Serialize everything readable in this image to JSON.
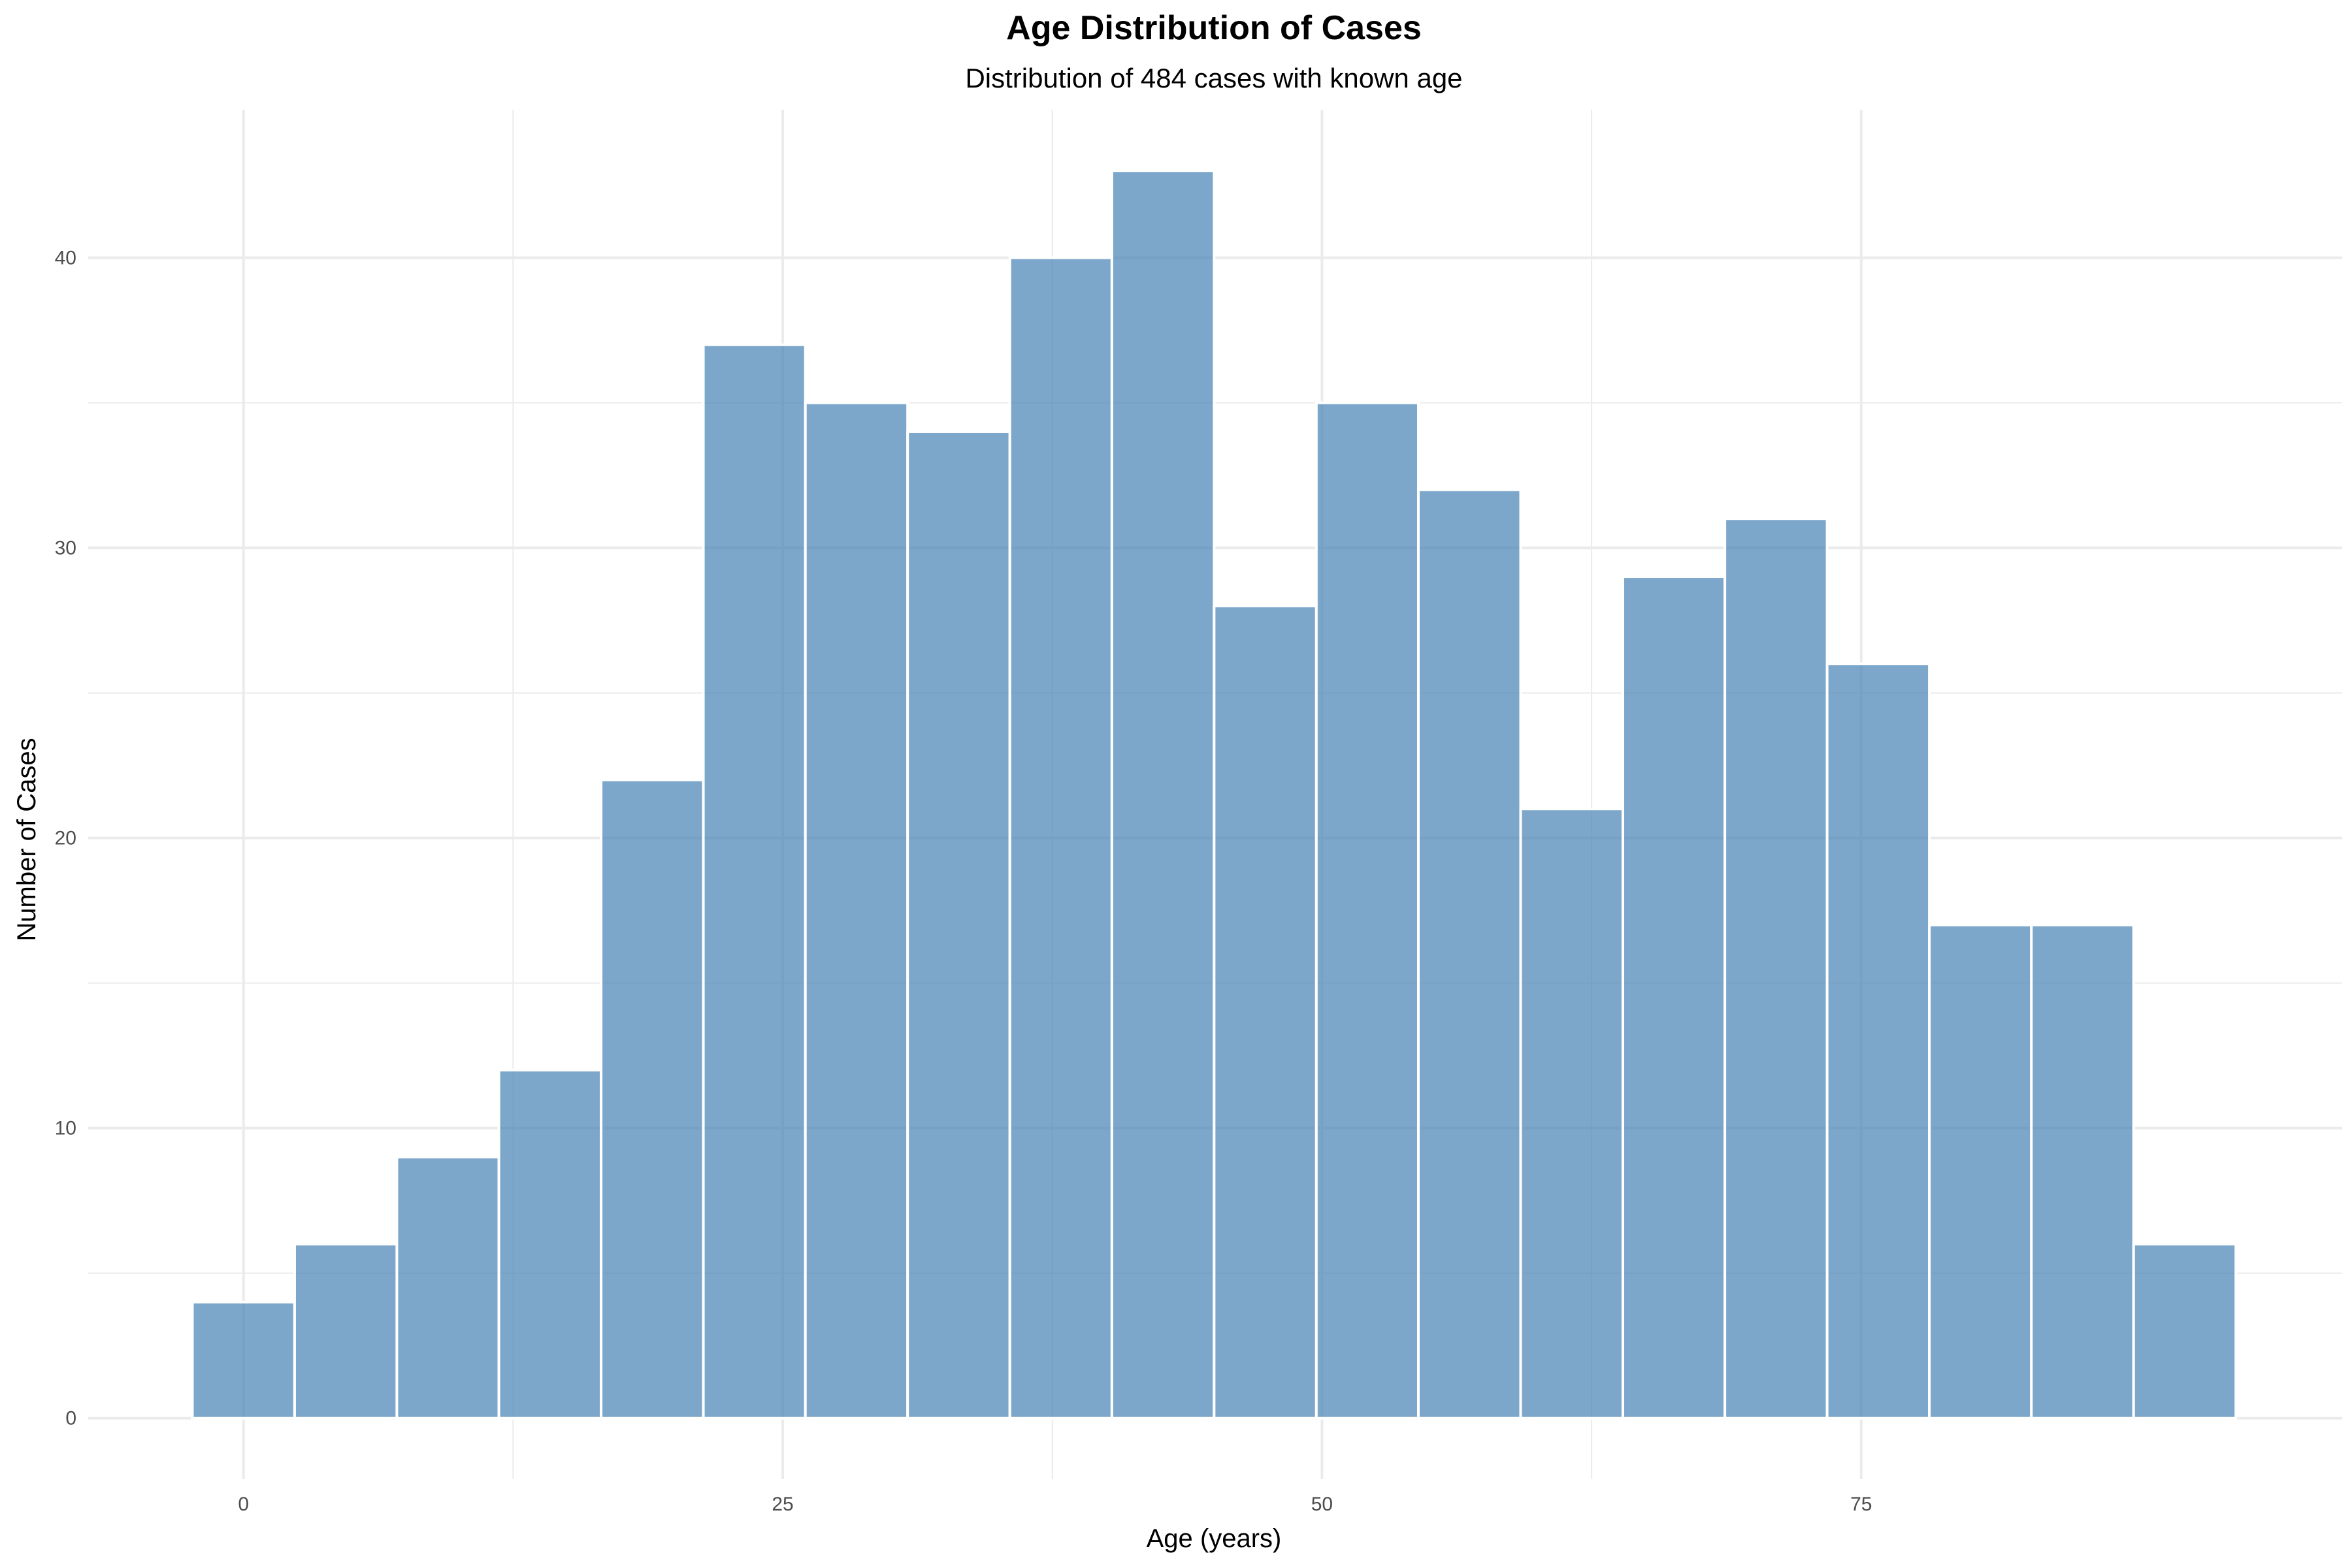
{
  "chart_data": {
    "type": "bar",
    "title": "Age Distribution of Cases",
    "subtitle": "Distribution of 484 cases with known age",
    "xlabel": "Age (years)",
    "ylabel": "Number of Cases",
    "xlim": [
      -7.2,
      97.3
    ],
    "ylim": [
      -2.1,
      45.1
    ],
    "x_ticks": [
      0,
      25,
      50,
      75
    ],
    "y_ticks": [
      0,
      10,
      20,
      30,
      40
    ],
    "bin_width": 4.737,
    "bins": [
      {
        "start": -2.37,
        "end": 2.37,
        "count": 4
      },
      {
        "start": 2.37,
        "end": 7.11,
        "count": 6
      },
      {
        "start": 7.11,
        "end": 11.84,
        "count": 9
      },
      {
        "start": 11.84,
        "end": 16.58,
        "count": 12
      },
      {
        "start": 16.58,
        "end": 21.32,
        "count": 22
      },
      {
        "start": 21.32,
        "end": 26.05,
        "count": 37
      },
      {
        "start": 26.05,
        "end": 30.79,
        "count": 35
      },
      {
        "start": 30.79,
        "end": 35.53,
        "count": 34
      },
      {
        "start": 35.53,
        "end": 40.26,
        "count": 40
      },
      {
        "start": 40.26,
        "end": 45.0,
        "count": 43
      },
      {
        "start": 45.0,
        "end": 49.74,
        "count": 28
      },
      {
        "start": 49.74,
        "end": 54.47,
        "count": 35
      },
      {
        "start": 54.47,
        "end": 59.21,
        "count": 32
      },
      {
        "start": 59.21,
        "end": 63.95,
        "count": 21
      },
      {
        "start": 63.95,
        "end": 68.68,
        "count": 29
      },
      {
        "start": 68.68,
        "end": 73.42,
        "count": 31
      },
      {
        "start": 73.42,
        "end": 78.16,
        "count": 26
      },
      {
        "start": 78.16,
        "end": 82.89,
        "count": 17
      },
      {
        "start": 82.89,
        "end": 87.63,
        "count": 17
      },
      {
        "start": 87.63,
        "end": 92.37,
        "count": 6
      }
    ],
    "grid": true,
    "legend": "none",
    "colors": {
      "bar_fill": "#4682B4",
      "bar_opacity": 0.7,
      "bar_outline": "#ffffff",
      "grid": "#ebebeb",
      "background": "#ffffff"
    }
  }
}
